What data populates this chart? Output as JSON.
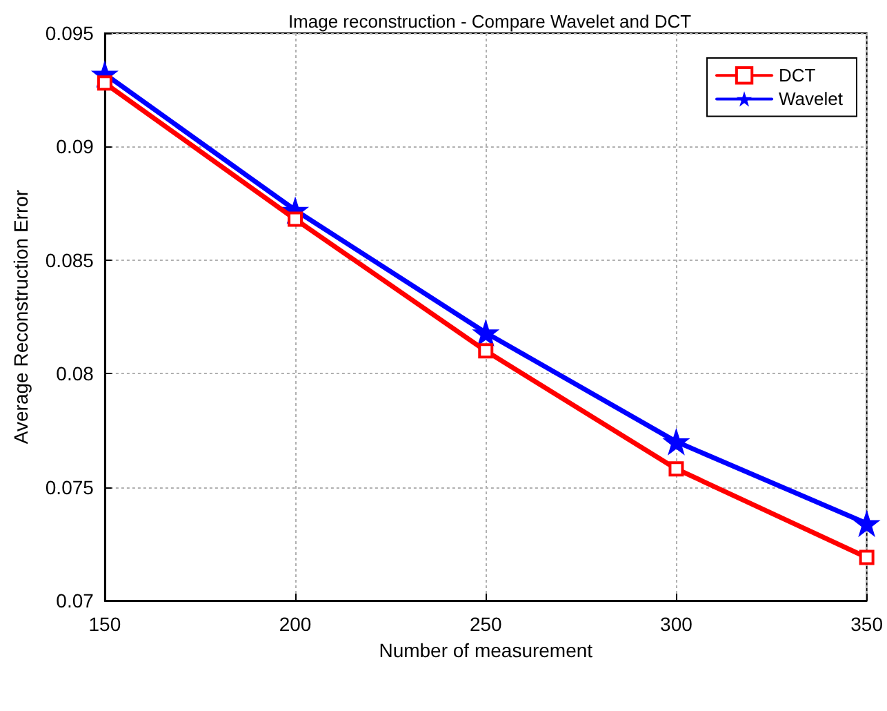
{
  "chart_data": {
    "type": "line",
    "title": "Image reconstruction - Compare Wavelet and DCT",
    "xlabel": "Number of measurement",
    "ylabel": "Average Reconstruction Error",
    "x": [
      150,
      200,
      250,
      300,
      350
    ],
    "series": [
      {
        "name": "DCT",
        "color": "#ff0000",
        "marker": "square",
        "values": [
          0.0928,
          0.0868,
          0.081,
          0.0758,
          0.0719
        ]
      },
      {
        "name": "Wavelet",
        "color": "#0000ff",
        "marker": "star",
        "values": [
          0.0932,
          0.0872,
          0.0818,
          0.077,
          0.0734
        ]
      }
    ],
    "xlim": [
      150,
      350
    ],
    "xticks": [
      150,
      200,
      250,
      300,
      350
    ],
    "ylim": [
      0.07,
      0.095
    ],
    "yticks": [
      0.07,
      0.075,
      0.08,
      0.085,
      0.09,
      0.095
    ],
    "grid": true,
    "legend": "top right",
    "line_style": "solid"
  }
}
